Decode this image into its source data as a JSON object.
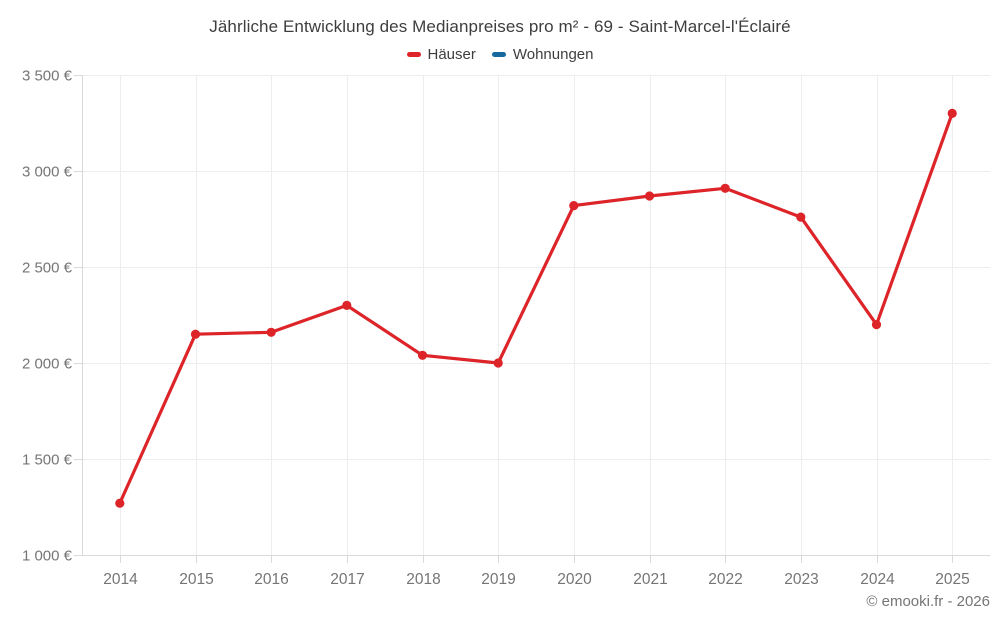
{
  "chart_data": {
    "type": "line",
    "title": "Jährliche Entwicklung des Medianpreises pro m² - 69 - Saint-Marcel-l'Éclairé",
    "categories": [
      "2014",
      "2015",
      "2016",
      "2017",
      "2018",
      "2019",
      "2020",
      "2021",
      "2022",
      "2023",
      "2024",
      "2025"
    ],
    "series": [
      {
        "name": "Häuser",
        "color": "#dc2429",
        "values": [
          1270,
          2150,
          2160,
          2300,
          2040,
          2000,
          2820,
          2870,
          2910,
          2760,
          2200,
          3300
        ]
      },
      {
        "name": "Wohnungen",
        "color": "#17699e",
        "values": []
      }
    ],
    "ylim": [
      1000,
      3500
    ],
    "ytick_step": 500,
    "yticks": [
      {
        "value": 1000,
        "label": "1 000 €"
      },
      {
        "value": 1500,
        "label": "1 500 €"
      },
      {
        "value": 2000,
        "label": "2 000 €"
      },
      {
        "value": 2500,
        "label": "2 500 €"
      },
      {
        "value": 3000,
        "label": "3 000 €"
      },
      {
        "value": 3500,
        "label": "3 500 €"
      }
    ],
    "grid": true,
    "legend_position": "top",
    "xlabel": "",
    "ylabel": ""
  },
  "footer": {
    "copyright": "© emooki.fr - 2026"
  },
  "colors": {
    "background": "#ffffff",
    "grid": "#ededed",
    "axis": "#d9d9d9",
    "tick_label": "#757575",
    "title_text": "#3e3e3e",
    "legend_text": "#3e3e3e",
    "series_hauser": "#dc2429",
    "series_wohnungen": "#17699e"
  }
}
